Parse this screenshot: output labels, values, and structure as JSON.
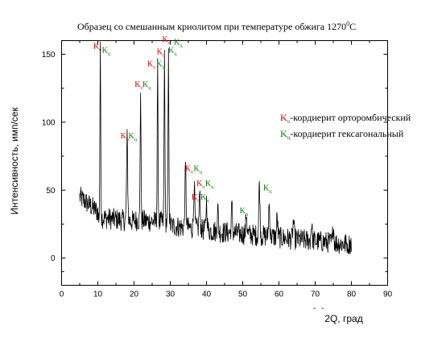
{
  "colors": {
    "ortho": "#e00000",
    "hex": "#008000",
    "line": "#000000"
  },
  "chart_data": {
    "type": "line",
    "title": {
      "main": "Образец со смешанным криолитом при температуре обжига 1270",
      "superscript": "0",
      "unit": "С"
    },
    "xlabel": "2Q, град",
    "ylabel": "Интенсивность, имп/сек",
    "xlim": [
      0,
      90
    ],
    "ylim": [
      -20,
      160
    ],
    "xticks": [
      "0",
      "10",
      "20",
      "30",
      "40",
      "50",
      "60",
      "70",
      "80",
      "90"
    ],
    "yticks": [
      "0",
      "50",
      "100",
      "150"
    ],
    "grid": false,
    "legend": {
      "placement": "right",
      "entries": [
        {
          "letter": "K",
          "sub": "о",
          "text": "-кордиерит орторомбический",
          "color_key": "ortho"
        },
        {
          "letter": "K",
          "sub": "ц",
          "text": "-кордиерит гексагональный",
          "color_key": "hex"
        }
      ]
    },
    "peaks": [
      {
        "x": 10.7,
        "y": 152
      },
      {
        "x": 18.1,
        "y": 88
      },
      {
        "x": 21.8,
        "y": 126
      },
      {
        "x": 26.5,
        "y": 140
      },
      {
        "x": 28.4,
        "y": 152
      },
      {
        "x": 29.5,
        "y": 148
      },
      {
        "x": 34.2,
        "y": 66
      },
      {
        "x": 36.6,
        "y": 55
      },
      {
        "x": 38.1,
        "y": 48
      },
      {
        "x": 40.0,
        "y": 42
      },
      {
        "x": 43.1,
        "y": 37
      },
      {
        "x": 47.0,
        "y": 38
      },
      {
        "x": 51.0,
        "y": 34
      },
      {
        "x": 54.6,
        "y": 56
      },
      {
        "x": 57.3,
        "y": 40
      },
      {
        "x": 59.5,
        "y": 30
      },
      {
        "x": 64.0,
        "y": 28
      },
      {
        "x": 69.0,
        "y": 26
      },
      {
        "x": 75.0,
        "y": 24
      }
    ],
    "annotations": [
      {
        "type": "o",
        "x": 9.9,
        "y": 154
      },
      {
        "type": "c",
        "x": 12.3,
        "y": 151
      },
      {
        "type": "o",
        "x": 17.4,
        "y": 88
      },
      {
        "type": "c",
        "x": 19.6,
        "y": 88
      },
      {
        "type": "o",
        "x": 21.3,
        "y": 126
      },
      {
        "type": "c",
        "x": 23.5,
        "y": 126
      },
      {
        "type": "o",
        "x": 24.8,
        "y": 141
      },
      {
        "type": "c",
        "x": 27.3,
        "y": 141
      },
      {
        "type": "o",
        "x": 27.4,
        "y": 150
      },
      {
        "type": "o",
        "x": 28.9,
        "y": 159
      },
      {
        "type": "c",
        "x": 30.6,
        "y": 151
      },
      {
        "type": "c",
        "x": 32.2,
        "y": 157
      },
      {
        "type": "o",
        "x": 35.2,
        "y": 64
      },
      {
        "type": "c",
        "x": 37.6,
        "y": 64
      },
      {
        "type": "o",
        "x": 38.4,
        "y": 53
      },
      {
        "type": "c",
        "x": 40.8,
        "y": 53
      },
      {
        "type": "o",
        "x": 37.0,
        "y": 43
      },
      {
        "type": "c",
        "x": 39.5,
        "y": 43
      },
      {
        "type": "c",
        "x": 50.3,
        "y": 33
      },
      {
        "type": "c",
        "x": 56.8,
        "y": 50
      }
    ],
    "stray_marks": [
      "-",
      "-"
    ]
  }
}
